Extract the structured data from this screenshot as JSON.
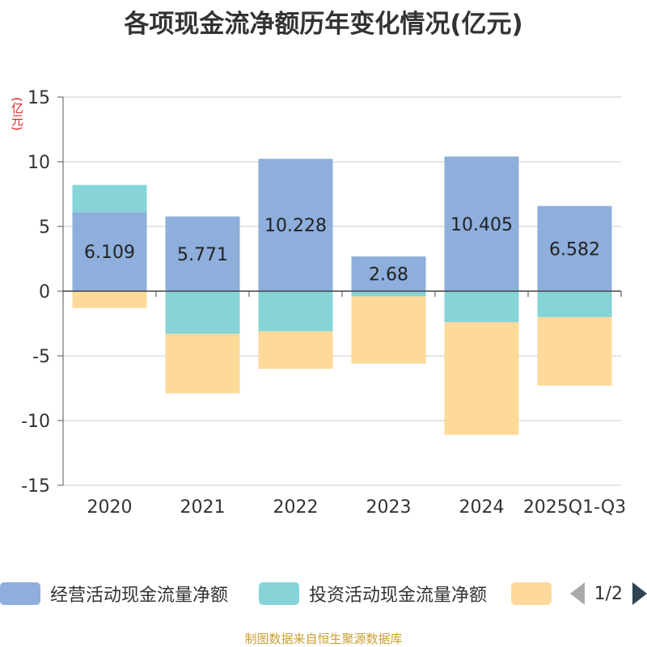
{
  "title": "各项现金流净额历年变化情况(亿元)",
  "unit_label": "(亿元)",
  "source": "制图数据来自恒生聚源数据库",
  "legend": {
    "items": [
      {
        "label": "经营活动现金流量净额",
        "color": "#8eaedc"
      },
      {
        "label": "投资活动现金流量净额",
        "color": "#86d4d8"
      },
      {
        "label": "",
        "color": "#fdd99a"
      }
    ],
    "page_indicator": "1/2"
  },
  "chart_data": {
    "type": "bar",
    "stacked": true,
    "title": "各项现金流净额历年变化情况(亿元)",
    "ylabel": "(亿元)",
    "ylim": [
      -15,
      15
    ],
    "yticks": [
      15,
      10,
      5,
      0,
      -5,
      -10,
      -15
    ],
    "categories": [
      "2020",
      "2021",
      "2022",
      "2023",
      "2024",
      "2025Q1-Q3"
    ],
    "series": [
      {
        "name": "经营活动现金流量净额",
        "color": "#8eaedc",
        "values": [
          6.109,
          5.771,
          10.228,
          2.68,
          10.405,
          6.582
        ],
        "labels": [
          "6.109",
          "5.771",
          "10.228",
          "2.68",
          "10.405",
          "6.582"
        ]
      },
      {
        "name": "投资活动现金流量净额",
        "color": "#86d4d8",
        "values": [
          2.1,
          -3.3,
          -3.1,
          -0.4,
          -2.4,
          -2.0
        ]
      },
      {
        "name": "",
        "color": "#fdd99a",
        "values": [
          -1.3,
          -4.6,
          -2.9,
          -5.2,
          -8.7,
          -5.3
        ]
      }
    ]
  }
}
